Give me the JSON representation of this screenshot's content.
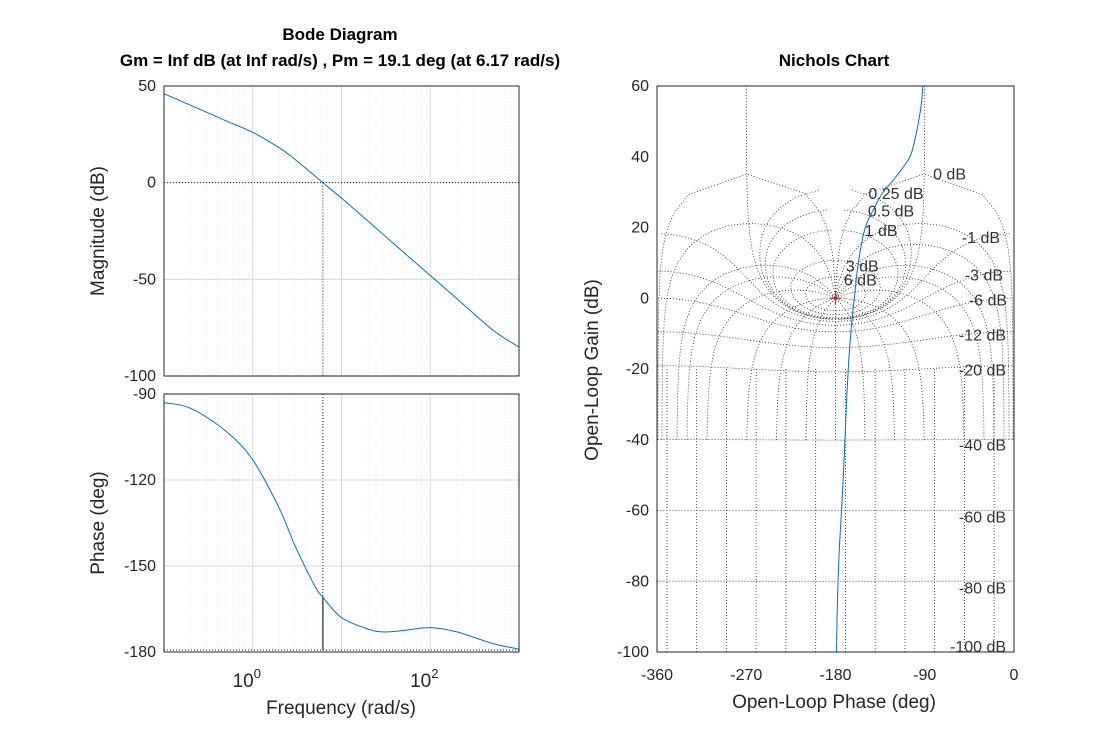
{
  "chart_data": [
    {
      "type": "line",
      "name": "bode-magnitude",
      "title": "Bode Diagram",
      "subtitle": "Gm = Inf dB (at Inf rad/s) ,  Pm = 19.1 deg (at 6.17 rad/s)",
      "ylabel": "Magnitude (dB)",
      "xscale": "log",
      "xlim": [
        0.1,
        1000
      ],
      "ylim": [
        -100,
        50
      ],
      "yticks": [
        "50",
        "0",
        "-50",
        "-100"
      ],
      "grid": true,
      "crossover_frequency": 6.17,
      "x": [
        0.1,
        0.2,
        0.5,
        1,
        2,
        3,
        6.17,
        10,
        20,
        50,
        100,
        200,
        500,
        1000
      ],
      "y": [
        46,
        40,
        32,
        26,
        18,
        12,
        0,
        -8,
        -20,
        -36,
        -48,
        -60,
        -76,
        -85
      ]
    },
    {
      "type": "line",
      "name": "bode-phase",
      "xlabel": "Frequency  (rad/s)",
      "ylabel": "Phase (deg)",
      "xscale": "log",
      "xlim": [
        0.1,
        1000
      ],
      "ylim": [
        -180,
        -90
      ],
      "yticks": [
        "-90",
        "-120",
        "-150",
        "-180"
      ],
      "xticks": [
        {
          "base": "10",
          "exp": "0"
        },
        {
          "base": "10",
          "exp": "2"
        }
      ],
      "grid": true,
      "phase_margin": 19.1,
      "x": [
        0.1,
        0.2,
        0.5,
        1,
        2,
        3,
        5,
        6.17,
        10,
        20,
        30,
        50,
        100,
        200,
        500,
        1000
      ],
      "y": [
        -93,
        -95,
        -103,
        -113,
        -130,
        -143,
        -157,
        -160.9,
        -168,
        -172,
        -173,
        -172.5,
        -171.5,
        -173,
        -177,
        -179
      ]
    },
    {
      "type": "line",
      "name": "nichols",
      "title": "Nichols Chart",
      "xlabel": "Open-Loop Phase (deg)",
      "ylabel": "Open-Loop Gain (dB)",
      "xlim": [
        -360,
        0
      ],
      "ylim": [
        -100,
        60
      ],
      "xticks": [
        "-360",
        "-270",
        "-180",
        "-90",
        "0"
      ],
      "yticks": [
        "60",
        "40",
        "20",
        "0",
        "-20",
        "-40",
        "-60",
        "-80",
        "-100"
      ],
      "critical_point": {
        "phase": -180,
        "gain": 0
      },
      "grid_labels": [
        "0 dB",
        "0.25 dB",
        "0.5 dB",
        "1 dB",
        "3 dB",
        "6 dB",
        "-1 dB",
        "-3 dB",
        "-6 dB",
        "-12 dB",
        "-20 dB",
        "-40 dB",
        "-60 dB",
        "-80 dB",
        "-100 dB"
      ],
      "x": [
        -179,
        -178,
        -176,
        -172,
        -169,
        -166,
        -163,
        -161,
        -157,
        -150,
        -140,
        -132,
        -120,
        -105,
        -99,
        -95,
        -93,
        -92
      ],
      "y": [
        -100,
        -85,
        -70,
        -50,
        -30,
        -15,
        -5,
        0,
        10,
        20,
        26,
        30,
        34,
        40,
        46,
        52,
        56,
        60
      ]
    }
  ]
}
